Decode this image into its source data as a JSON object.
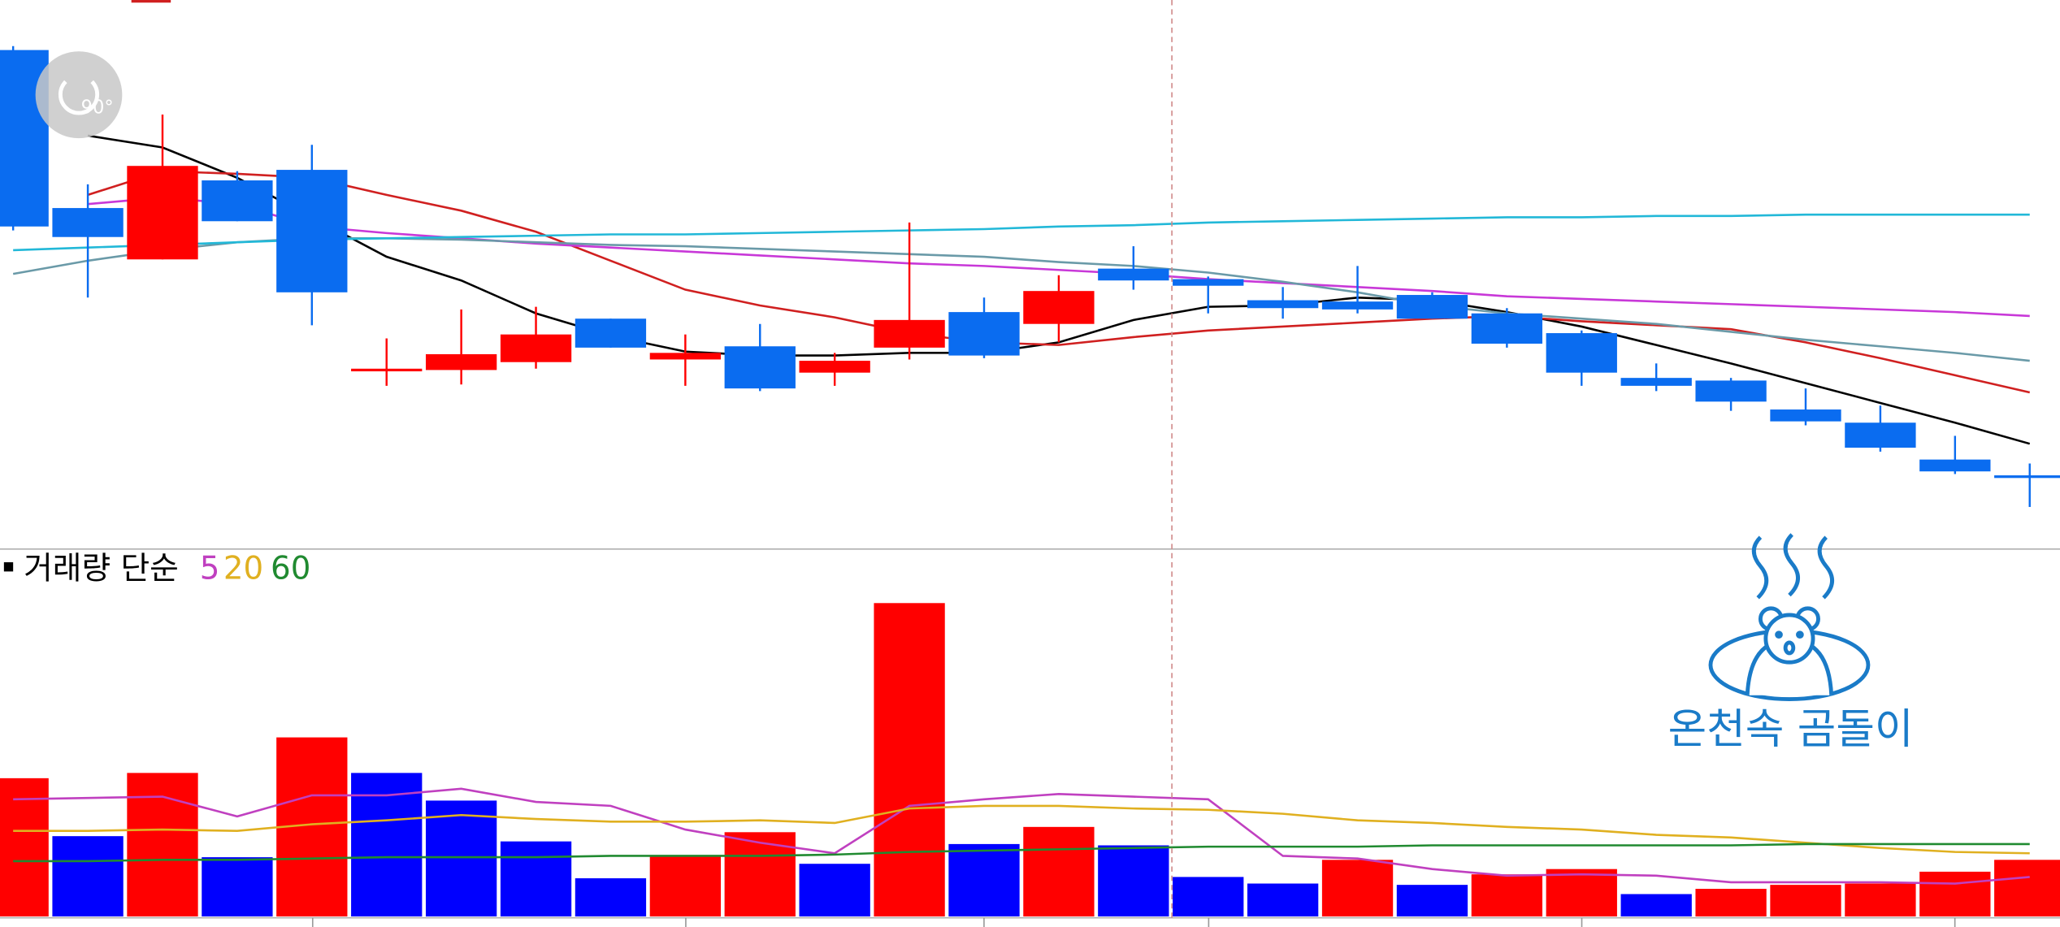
{
  "rotate_button": {
    "label": "90°"
  },
  "watermark": {
    "text": "온천속 곰돌이"
  },
  "chart_data": [
    {
      "type": "candlestick",
      "up_color": "#ff0000",
      "down_color": "#0a6cf0",
      "open": [
        379,
        259,
        220,
        280,
        288,
        135,
        136,
        142,
        175,
        144,
        154,
        134,
        153,
        180,
        171,
        213,
        205,
        189,
        188,
        193,
        179,
        164,
        130,
        128,
        106,
        96,
        68,
        56
      ],
      "high": [
        382,
        277,
        330,
        287,
        307,
        160,
        182,
        184,
        175,
        163,
        171,
        149,
        248,
        191,
        208,
        230,
        207,
        199,
        215,
        195,
        183,
        166,
        141,
        130,
        122,
        109,
        86,
        65
      ],
      "low": [
        242,
        191,
        220,
        249,
        170,
        124,
        125,
        137,
        153,
        124,
        120,
        124,
        144,
        145,
        157,
        197,
        179,
        175,
        179,
        175,
        153,
        124,
        120,
        105,
        94,
        74,
        57,
        32
      ],
      "close": [
        245,
        237,
        291,
        249,
        195,
        137,
        148,
        163,
        153,
        149,
        122,
        143,
        174,
        147,
        196,
        204,
        200,
        183,
        182,
        175,
        156,
        134,
        124,
        112,
        97,
        77,
        59,
        54
      ],
      "ylim": [
        0,
        417
      ],
      "series": [
        {
          "color": "#000000",
          "values": [
            null,
            314,
            305,
            282,
            252,
            222,
            204,
            179,
            162,
            150,
            147,
            147,
            149,
            149,
            157,
            174,
            184,
            185,
            191,
            189,
            180,
            169,
            155,
            141,
            126,
            111,
            96,
            80
          ]
        },
        {
          "color": "#d02020",
          "values": [
            null,
            269,
            287,
            285,
            282,
            269,
            257,
            241,
            219,
            197,
            185,
            176,
            164,
            157,
            155,
            161,
            166,
            169,
            172,
            175,
            177,
            173,
            170,
            167,
            157,
            145,
            132,
            119
          ]
        },
        {
          "color": "#c838d8",
          "values": [
            null,
            262,
            267,
            262,
            245,
            240,
            236,
            232,
            229,
            226,
            223,
            220,
            217,
            215,
            212,
            209,
            205,
            202,
            199,
            196,
            192,
            190,
            188,
            186,
            184,
            182,
            180,
            177
          ]
        },
        {
          "color": "#6a9aa8",
          "values": [
            209,
            219,
            227,
            233,
            236,
            236,
            235,
            233,
            231,
            230,
            228,
            226,
            224,
            222,
            218,
            215,
            210,
            203,
            195,
            185,
            179,
            175,
            171,
            165,
            159,
            154,
            149,
            143
          ]
        },
        {
          "color": "#22b8d8",
          "values": [
            227,
            229,
            231,
            233,
            235,
            236,
            237,
            238,
            239,
            239,
            240,
            241,
            242,
            243,
            245,
            246,
            248,
            249,
            250,
            251,
            252,
            252,
            253,
            253,
            254,
            254,
            254,
            254
          ]
        }
      ]
    },
    {
      "type": "bar",
      "title": "거래량 단순",
      "values": [
        105,
        61,
        109,
        45,
        136,
        109,
        88,
        57,
        29,
        46,
        64,
        40,
        238,
        55,
        68,
        54,
        30,
        25,
        43,
        24,
        32,
        36,
        17,
        21,
        24,
        25,
        34,
        43
      ],
      "colors": [
        "#ff0000",
        "#0000ff",
        "#ff0000",
        "#0000ff",
        "#ff0000",
        "#0000ff",
        "#0000ff",
        "#0000ff",
        "#0000ff",
        "#ff0000",
        "#ff0000",
        "#0000ff",
        "#ff0000",
        "#0000ff",
        "#ff0000",
        "#0000ff",
        "#0000ff",
        "#0000ff",
        "#ff0000",
        "#0000ff",
        "#ff0000",
        "#ff0000",
        "#0000ff",
        "#ff0000",
        "#ff0000",
        "#ff0000",
        "#ff0000",
        "#ff0000"
      ],
      "ylim": [
        0,
        278
      ],
      "series": [
        {
          "name": "5",
          "color": "#c040c0",
          "values": [
            89,
            90,
            91,
            76,
            92,
            92,
            97,
            87,
            84,
            66,
            56,
            48,
            84,
            89,
            93,
            91,
            89,
            46,
            44,
            36,
            31,
            32,
            31,
            26,
            26,
            26,
            25,
            30
          ]
        },
        {
          "name": "20",
          "color": "#e0b020",
          "values": [
            65,
            65,
            66,
            65,
            70,
            73,
            77,
            74,
            72,
            72,
            73,
            71,
            82,
            84,
            84,
            82,
            81,
            78,
            73,
            71,
            68,
            66,
            62,
            60,
            56,
            52,
            49,
            48
          ]
        },
        {
          "name": "60",
          "color": "#208a30",
          "values": [
            42,
            42,
            43,
            43,
            44,
            45,
            45,
            45,
            46,
            46,
            46,
            47,
            49,
            50,
            51,
            52,
            53,
            53,
            53,
            54,
            54,
            54,
            54,
            54,
            55,
            55,
            55,
            55
          ]
        }
      ]
    }
  ]
}
